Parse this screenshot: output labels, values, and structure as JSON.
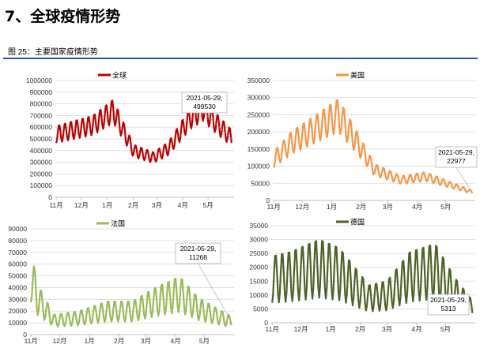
{
  "heading": "7、全球疫情形势",
  "caption": "图 25：主要国家疫情形势",
  "chart_data": [
    {
      "type": "line",
      "title": "",
      "series": [
        {
          "name": "全球",
          "color": "#c00000"
        }
      ],
      "legend_position": "top-center",
      "ylim": [
        0,
        1000000
      ],
      "yticks": [
        0,
        100000,
        200000,
        300000,
        400000,
        500000,
        600000,
        700000,
        800000,
        900000,
        1000000
      ],
      "ytick_labels": [
        "0",
        "100000",
        "200000",
        "300000",
        "400000",
        "500000",
        "600000",
        "700000",
        "800000",
        "900000",
        "1000000"
      ],
      "xlim": [
        "2020-10-31",
        "2021-06-01"
      ],
      "xticks": [
        "2020-11-01",
        "2020-12-01",
        "2021-01-01",
        "2021-02-01",
        "2021-03-01",
        "2021-04-01",
        "2021-05-01"
      ],
      "xtick_labels": [
        "11月",
        "12月",
        "1月",
        "2月",
        "3月",
        "4月",
        "5月"
      ],
      "weekly_cycle": {
        "start": "2020-11-01",
        "end": "2021-05-29",
        "baseline_dates": [
          "2020-11-01",
          "2020-12-15",
          "2021-01-08",
          "2021-02-01",
          "2021-02-25",
          "2021-03-15",
          "2021-04-10",
          "2021-04-25",
          "2021-05-10",
          "2021-05-29"
        ],
        "baseline_values": [
          540000,
          620000,
          740000,
          400000,
          340000,
          420000,
          680000,
          760000,
          640000,
          510000
        ],
        "weekly_amplitude": 0.14
      },
      "annotation": {
        "label_line1": "2021-05-29,",
        "label_line2": "499530",
        "x": "2021-05-29",
        "y": 499530
      }
    },
    {
      "type": "line",
      "title": "",
      "series": [
        {
          "name": "美国",
          "color": "#f79646"
        }
      ],
      "legend_position": "top-center",
      "ylim": [
        0,
        350000
      ],
      "yticks": [
        0,
        50000,
        100000,
        150000,
        200000,
        250000,
        300000,
        350000
      ],
      "ytick_labels": [
        "0",
        "50000",
        "100000",
        "150000",
        "200000",
        "250000",
        "300000",
        "350000"
      ],
      "xlim": [
        "2020-10-31",
        "2021-06-01"
      ],
      "xticks": [
        "2020-11-01",
        "2020-12-01",
        "2021-01-01",
        "2021-02-01",
        "2021-03-01",
        "2021-04-01",
        "2021-05-01"
      ],
      "xtick_labels": [
        "11月",
        "12月",
        "1月",
        "2月",
        "3月",
        "4月",
        "5月"
      ],
      "weekly_cycle": {
        "start": "2020-11-01",
        "end": "2021-05-29",
        "baseline_dates": [
          "2020-11-01",
          "2020-11-20",
          "2020-12-15",
          "2021-01-08",
          "2021-01-25",
          "2021-02-15",
          "2021-03-15",
          "2021-04-10",
          "2021-05-01",
          "2021-05-29"
        ],
        "baseline_values": [
          120000,
          170000,
          210000,
          250000,
          180000,
          90000,
          60000,
          70000,
          50000,
          24000
        ],
        "weekly_amplitude": 0.2
      },
      "annotation": {
        "label_line1": "2021-05-29,",
        "label_line2": "22977",
        "x": "2021-05-29",
        "y": 22977
      }
    },
    {
      "type": "line",
      "title": "",
      "series": [
        {
          "name": "法国",
          "color": "#9bbb59"
        }
      ],
      "legend_position": "top-center",
      "ylim": [
        0,
        90000
      ],
      "yticks": [
        0,
        10000,
        20000,
        30000,
        40000,
        50000,
        60000,
        70000,
        80000,
        90000
      ],
      "ytick_labels": [
        "0",
        "10000",
        "20000",
        "30000",
        "40000",
        "50000",
        "60000",
        "70000",
        "80000",
        "90000"
      ],
      "xlim": [
        "2020-10-31",
        "2021-06-01"
      ],
      "xticks": [
        "2020-11-01",
        "2020-12-01",
        "2021-01-01",
        "2021-02-01",
        "2021-03-01",
        "2021-04-01",
        "2021-05-01"
      ],
      "xtick_labels": [
        "11月",
        "12月",
        "1月",
        "2月",
        "3月",
        "4月",
        "5月"
      ],
      "weekly_cycle": {
        "start": "2020-11-01",
        "end": "2021-05-29",
        "baseline_dates": [
          "2020-11-01",
          "2020-11-08",
          "2020-11-25",
          "2020-12-20",
          "2021-01-20",
          "2021-02-15",
          "2021-03-10",
          "2021-04-05",
          "2021-04-25",
          "2021-05-29"
        ],
        "baseline_values": [
          50000,
          30000,
          12000,
          14000,
          20000,
          20000,
          28000,
          35000,
          22000,
          11000
        ],
        "weekly_amplitude": 0.45
      },
      "annotation": {
        "label_line1": "2021-05-29,",
        "label_line2": "11268",
        "x": "2021-05-29",
        "y": 11268
      }
    },
    {
      "type": "line",
      "title": "",
      "series": [
        {
          "name": "德国",
          "color": "#4f6228"
        }
      ],
      "legend_position": "top-center",
      "ylim": [
        0,
        35000
      ],
      "yticks": [
        0,
        5000,
        10000,
        15000,
        20000,
        25000,
        30000,
        35000
      ],
      "ytick_labels": [
        "0",
        "5000",
        "10000",
        "15000",
        "20000",
        "25000",
        "30000",
        "35000"
      ],
      "xlim": [
        "2020-10-31",
        "2021-06-01"
      ],
      "xticks": [
        "2020-11-01",
        "2020-12-01",
        "2021-01-01",
        "2021-02-01",
        "2021-03-01",
        "2021-04-01",
        "2021-05-01"
      ],
      "xtick_labels": [
        "11月",
        "12月",
        "1月",
        "2月",
        "3月",
        "4月",
        "5月"
      ],
      "weekly_cycle": {
        "start": "2020-11-01",
        "end": "2021-05-29",
        "baseline_dates": [
          "2020-11-01",
          "2020-11-20",
          "2020-12-20",
          "2021-01-10",
          "2021-02-10",
          "2021-03-01",
          "2021-03-25",
          "2021-04-20",
          "2021-05-10",
          "2021-05-29"
        ],
        "baseline_values": [
          16000,
          17000,
          20000,
          18000,
          9000,
          10000,
          17000,
          19000,
          11000,
          5300
        ],
        "weekly_amplitude": 0.55
      },
      "annotation": {
        "label_line1": "2021-05-29,",
        "label_line2": "5313",
        "x": "2021-05-29",
        "y": 5313
      }
    }
  ]
}
